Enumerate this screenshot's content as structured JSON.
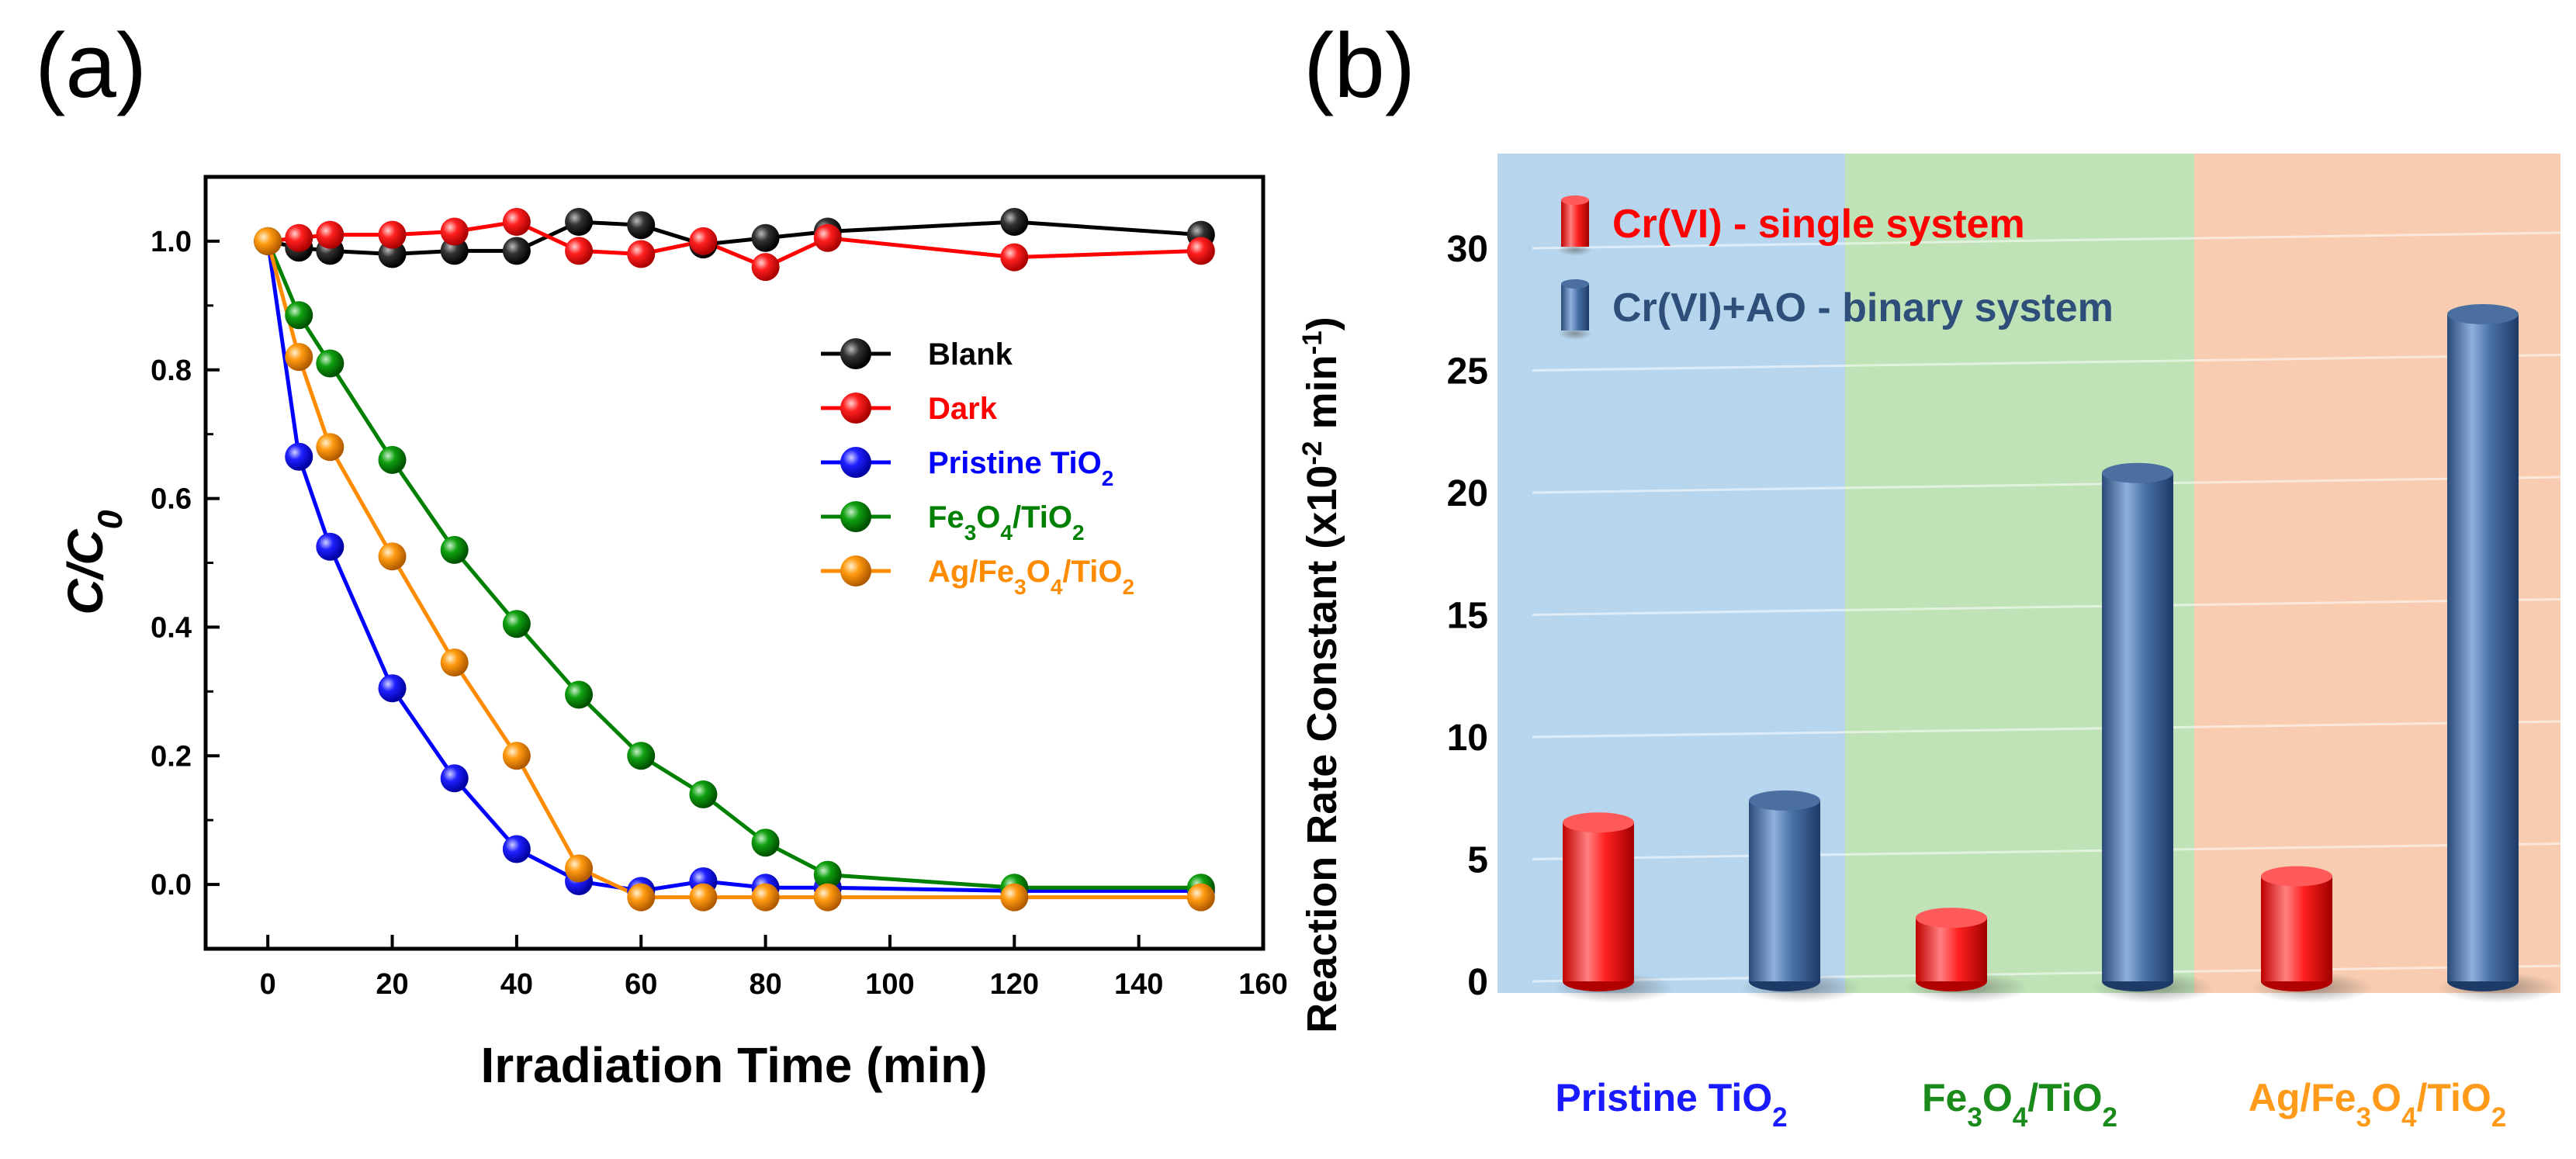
{
  "chart_data": [
    {
      "type": "line",
      "panel_label": "(a)",
      "xlabel": "Irradiation Time (min)",
      "ylabel": "C/C",
      "ylabel_sub": "0",
      "xlim": [
        -10,
        160
      ],
      "ylim": [
        -0.1,
        1.1
      ],
      "x_ticks": [
        "0",
        "20",
        "40",
        "60",
        "80",
        "100",
        "120",
        "140",
        "160"
      ],
      "y_ticks": [
        "0.0",
        "0.2",
        "0.4",
        "0.6",
        "0.8",
        "1.0"
      ],
      "legend_position": "center-right",
      "series": [
        {
          "name": "Blank",
          "color": "#000000",
          "name_parts": [
            {
              "t": "Blank"
            }
          ],
          "x": [
            0,
            5,
            10,
            20,
            30,
            40,
            50,
            60,
            70,
            80,
            90,
            120,
            150
          ],
          "y": [
            1.0,
            0.99,
            0.985,
            0.98,
            0.985,
            0.985,
            1.03,
            1.025,
            0.995,
            1.005,
            1.015,
            1.03,
            1.01
          ]
        },
        {
          "name": "Dark",
          "color": "#ff0000",
          "name_parts": [
            {
              "t": "Dark"
            }
          ],
          "x": [
            0,
            5,
            10,
            20,
            30,
            40,
            50,
            60,
            70,
            80,
            90,
            120,
            150
          ],
          "y": [
            1.0,
            1.005,
            1.01,
            1.01,
            1.015,
            1.03,
            0.985,
            0.98,
            1.0,
            0.96,
            1.005,
            0.975,
            0.985
          ]
        },
        {
          "name": "Pristine TiO2",
          "color": "#0000ff",
          "name_parts": [
            {
              "t": "Pristine TiO"
            },
            {
              "t": "2",
              "sub": true
            }
          ],
          "x": [
            0,
            5,
            10,
            20,
            30,
            40,
            50,
            60,
            70,
            80,
            90,
            120,
            150
          ],
          "y": [
            1.0,
            0.665,
            0.525,
            0.305,
            0.165,
            0.055,
            0.005,
            -0.01,
            0.005,
            -0.005,
            -0.005,
            -0.01,
            -0.01
          ]
        },
        {
          "name": "Fe3O4/TiO2",
          "color": "#008000",
          "name_parts": [
            {
              "t": "Fe"
            },
            {
              "t": "3",
              "sub": true
            },
            {
              "t": "O"
            },
            {
              "t": "4",
              "sub": true
            },
            {
              "t": "/TiO"
            },
            {
              "t": "2",
              "sub": true
            }
          ],
          "x": [
            0,
            5,
            10,
            20,
            30,
            40,
            50,
            60,
            70,
            80,
            90,
            120,
            150
          ],
          "y": [
            1.0,
            0.885,
            0.81,
            0.66,
            0.52,
            0.405,
            0.295,
            0.2,
            0.14,
            0.065,
            0.015,
            -0.005,
            -0.005
          ]
        },
        {
          "name": "Ag/Fe3O4/TiO2",
          "color": "#ff8c00",
          "name_parts": [
            {
              "t": "Ag/Fe"
            },
            {
              "t": "3",
              "sub": true
            },
            {
              "t": "O"
            },
            {
              "t": "4",
              "sub": true
            },
            {
              "t": "/TiO"
            },
            {
              "t": "2",
              "sub": true
            }
          ],
          "x": [
            0,
            5,
            10,
            20,
            30,
            40,
            50,
            60,
            70,
            80,
            90,
            120,
            150
          ],
          "y": [
            1.0,
            0.82,
            0.68,
            0.51,
            0.345,
            0.2,
            0.025,
            -0.02,
            -0.02,
            -0.02,
            -0.02,
            -0.02,
            -0.02
          ]
        }
      ]
    },
    {
      "type": "bar",
      "panel_label": "(b)",
      "ylabel": "Reaction Rate Constant (x10",
      "ylabel_sup1": "-2",
      "ylabel_mid": " min",
      "ylabel_sup2": "-1",
      "ylabel_end": ")",
      "ylim": [
        0,
        35
      ],
      "y_ticks": [
        "0",
        "5",
        "10",
        "15",
        "20",
        "25",
        "30"
      ],
      "legend_position": "top-left",
      "categories": [
        {
          "parts": [
            {
              "t": "Pristine TiO"
            },
            {
              "t": "2",
              "sub": true
            }
          ],
          "color": "#1a1aff",
          "bg": "#b7d6ee"
        },
        {
          "parts": [
            {
              "t": "Fe"
            },
            {
              "t": "3",
              "sub": true
            },
            {
              "t": "O"
            },
            {
              "t": "4",
              "sub": true
            },
            {
              "t": "/TiO"
            },
            {
              "t": "2",
              "sub": true
            }
          ],
          "color": "#1a8a1a",
          "bg": "#bfe2b6"
        },
        {
          "parts": [
            {
              "t": "Ag/Fe"
            },
            {
              "t": "3",
              "sub": true
            },
            {
              "t": "O"
            },
            {
              "t": "4",
              "sub": true
            },
            {
              "t": "/TiO"
            },
            {
              "t": "2",
              "sub": true
            }
          ],
          "color": "#ff9a1a",
          "bg": "#f8ccb0"
        }
      ],
      "series": [
        {
          "name": "Cr(VI) - single system",
          "color": "#ff0000",
          "values": [
            6.5,
            2.6,
            4.3
          ]
        },
        {
          "name": "Cr(VI)+AO - binary system",
          "color": "#2e4f7a",
          "values": [
            7.4,
            20.8,
            27.3
          ]
        }
      ]
    }
  ]
}
